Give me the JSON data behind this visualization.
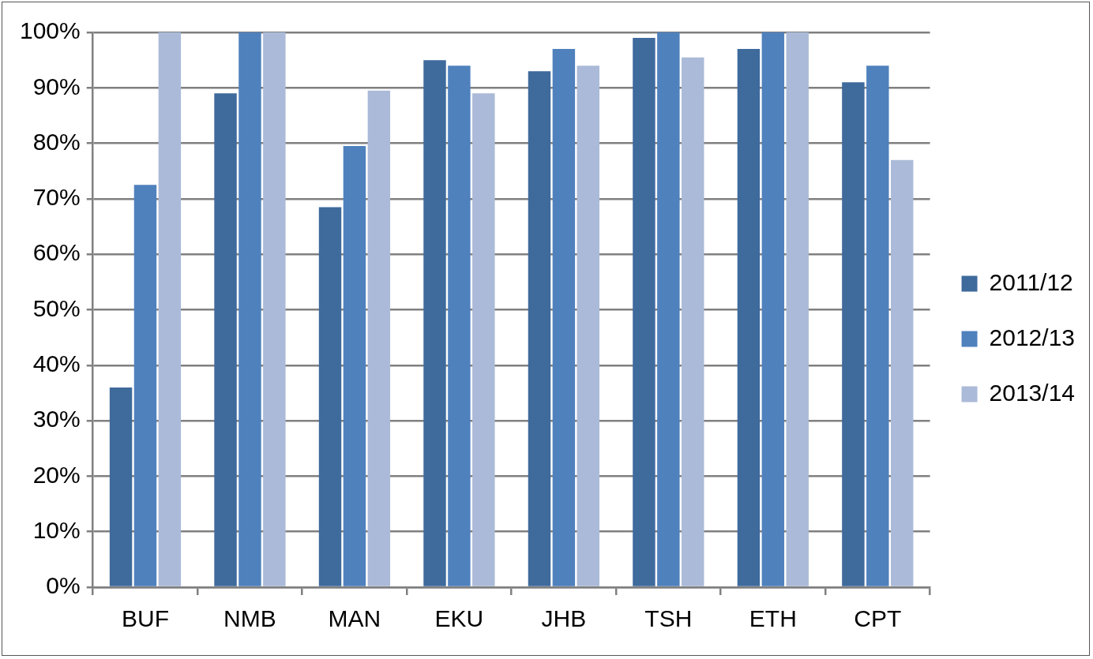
{
  "chart_data": {
    "type": "bar",
    "categories": [
      "BUF",
      "NMB",
      "MAN",
      "EKU",
      "JHB",
      "TSH",
      "ETH",
      "CPT"
    ],
    "series": [
      {
        "name": "2011/12",
        "color": "#3f6a9c",
        "values": [
          36,
          89,
          68.5,
          95,
          93,
          99,
          97,
          91
        ]
      },
      {
        "name": "2012/13",
        "color": "#4f81bd",
        "values": [
          72.5,
          100,
          79.5,
          94,
          97,
          100,
          100,
          94
        ]
      },
      {
        "name": "2013/14",
        "color": "#abbad8",
        "values": [
          100,
          100,
          89.5,
          89,
          94,
          95.5,
          100,
          77
        ]
      }
    ],
    "ylim": [
      0,
      100
    ],
    "yticks": [
      {
        "value": 0,
        "label": "0%"
      },
      {
        "value": 10,
        "label": "10%"
      },
      {
        "value": 20,
        "label": "20%"
      },
      {
        "value": 30,
        "label": "30%"
      },
      {
        "value": 40,
        "label": "40%"
      },
      {
        "value": 50,
        "label": "50%"
      },
      {
        "value": 60,
        "label": "60%"
      },
      {
        "value": 70,
        "label": "70%"
      },
      {
        "value": 80,
        "label": "80%"
      },
      {
        "value": 90,
        "label": "90%"
      },
      {
        "value": 100,
        "label": "100%"
      }
    ],
    "grid": "y",
    "legend": "right"
  }
}
